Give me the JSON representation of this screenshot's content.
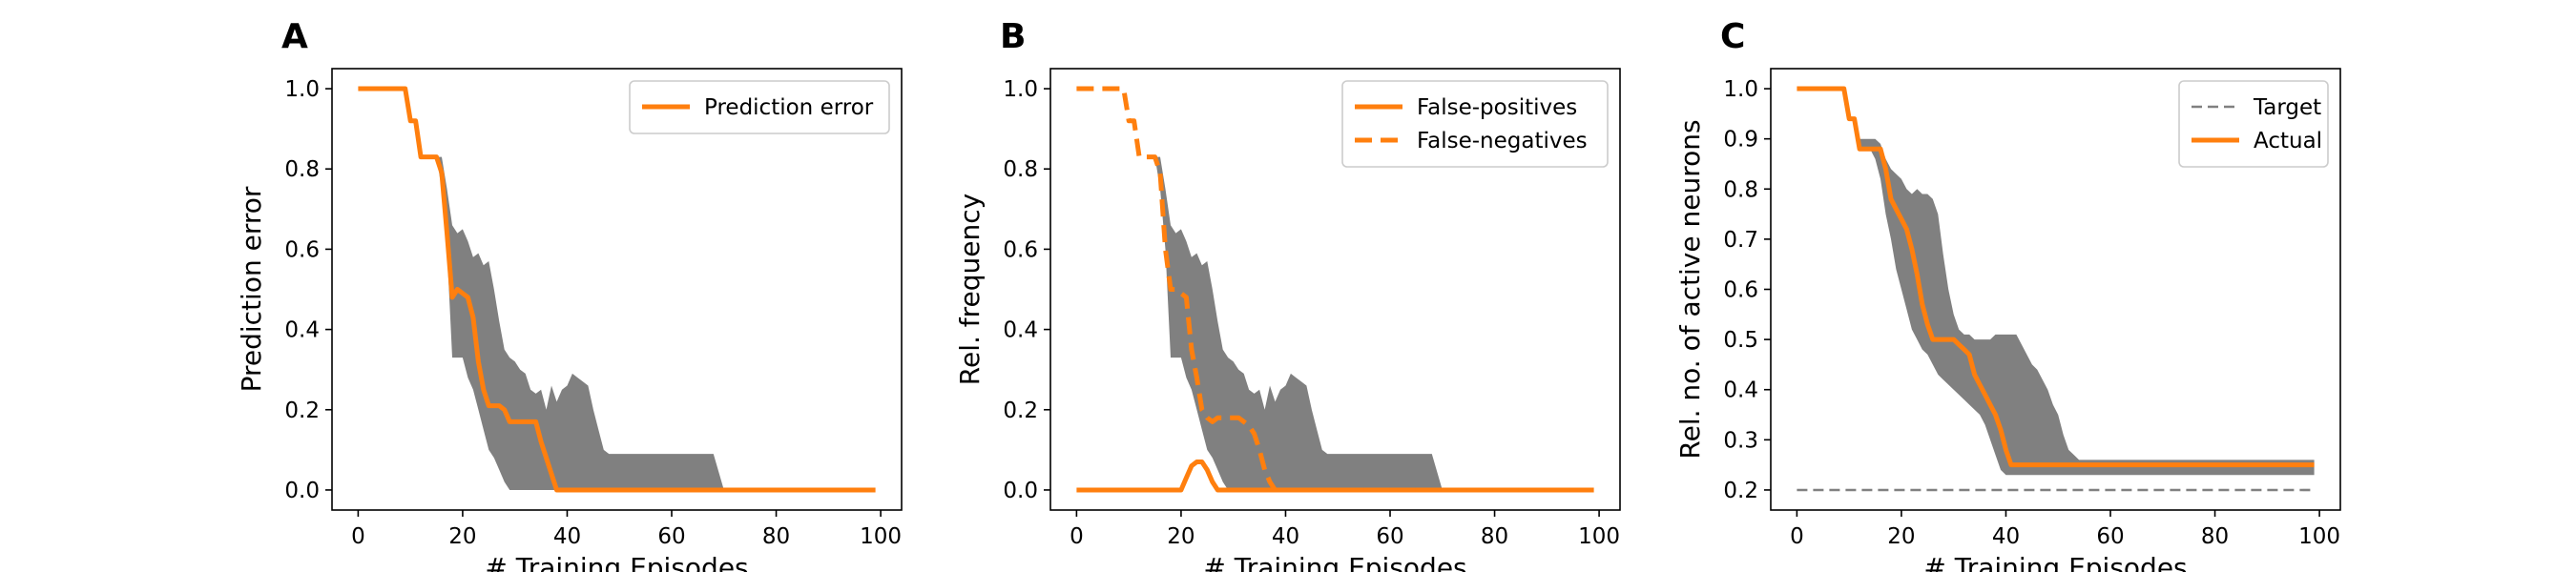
{
  "colors": {
    "line": "#ff7f0e",
    "band": "#808080",
    "target": "#808080",
    "axes": "#000000",
    "legend_border": "#cccccc"
  },
  "chart_data": [
    {
      "panel": "A",
      "type": "line",
      "xlabel": "# Training Episodes",
      "ylabel": "Prediction error",
      "xlim": [
        -5,
        104
      ],
      "ylim": [
        -0.05,
        1.05
      ],
      "xticks": [
        0,
        20,
        40,
        60,
        80,
        100
      ],
      "yticks": [
        0.0,
        0.2,
        0.4,
        0.6,
        0.8,
        1.0
      ],
      "xtick_labels": [
        "0",
        "20",
        "40",
        "60",
        "80",
        "100"
      ],
      "ytick_labels": [
        "0.0",
        "0.2",
        "0.4",
        "0.6",
        "0.8",
        "1.0"
      ],
      "legend_position": "top-right",
      "band": {
        "x": [
          0,
          9,
          10,
          11,
          12,
          13,
          14,
          15,
          16,
          17,
          18,
          19,
          20,
          21,
          22,
          23,
          24,
          25,
          26,
          27,
          28,
          29,
          30,
          31,
          32,
          33,
          34,
          35,
          36,
          37,
          38,
          39,
          40,
          41,
          42,
          43,
          44,
          45,
          46,
          47,
          48,
          49,
          50,
          55,
          60,
          65,
          67,
          68,
          70,
          75,
          80,
          90,
          99
        ],
        "lower": [
          1.0,
          1.0,
          0.92,
          0.92,
          0.83,
          0.83,
          0.83,
          0.83,
          0.75,
          0.6,
          0.33,
          0.33,
          0.33,
          0.28,
          0.25,
          0.2,
          0.15,
          0.1,
          0.08,
          0.05,
          0.02,
          0.0,
          0.0,
          0.0,
          0.0,
          0.0,
          0.0,
          0.0,
          0.0,
          0.0,
          0.0,
          0.0,
          0.0,
          0.0,
          0.0,
          0.0,
          0.0,
          0.0,
          0.0,
          0.0,
          0.0,
          0.0,
          0.0,
          0.0,
          0.0,
          0.0,
          0.0,
          0.0,
          0.0,
          0.0,
          0.0,
          0.0,
          0.0
        ],
        "upper": [
          1.0,
          1.0,
          0.92,
          0.92,
          0.83,
          0.83,
          0.83,
          0.83,
          0.83,
          0.75,
          0.66,
          0.64,
          0.65,
          0.62,
          0.58,
          0.59,
          0.56,
          0.57,
          0.5,
          0.42,
          0.35,
          0.33,
          0.32,
          0.3,
          0.29,
          0.25,
          0.24,
          0.25,
          0.2,
          0.26,
          0.22,
          0.25,
          0.26,
          0.29,
          0.28,
          0.27,
          0.26,
          0.2,
          0.15,
          0.1,
          0.09,
          0.09,
          0.09,
          0.09,
          0.09,
          0.09,
          0.09,
          0.09,
          0.0,
          0.0,
          0.0,
          0.0,
          0.0
        ]
      },
      "series": [
        {
          "name": "Prediction error",
          "style": "solid",
          "x": [
            0,
            9,
            10,
            11,
            12,
            13,
            14,
            15,
            16,
            17,
            18,
            19,
            20,
            21,
            22,
            23,
            24,
            25,
            26,
            27,
            28,
            29,
            30,
            31,
            32,
            33,
            34,
            35,
            36,
            37,
            38,
            39,
            40,
            50,
            60,
            70,
            80,
            90,
            99
          ],
          "y": [
            1.0,
            1.0,
            0.92,
            0.92,
            0.83,
            0.83,
            0.83,
            0.83,
            0.79,
            0.64,
            0.48,
            0.5,
            0.49,
            0.48,
            0.43,
            0.32,
            0.25,
            0.21,
            0.21,
            0.21,
            0.2,
            0.17,
            0.17,
            0.17,
            0.17,
            0.17,
            0.17,
            0.12,
            0.08,
            0.04,
            0.0,
            0.0,
            0.0,
            0.0,
            0.0,
            0.0,
            0.0,
            0.0,
            0.0
          ]
        }
      ]
    },
    {
      "panel": "B",
      "type": "line",
      "xlabel": "# Training Episodes",
      "ylabel": "Rel. frequency",
      "xlim": [
        -5,
        104
      ],
      "ylim": [
        -0.05,
        1.05
      ],
      "xticks": [
        0,
        20,
        40,
        60,
        80,
        100
      ],
      "yticks": [
        0.0,
        0.2,
        0.4,
        0.6,
        0.8,
        1.0
      ],
      "xtick_labels": [
        "0",
        "20",
        "40",
        "60",
        "80",
        "100"
      ],
      "ytick_labels": [
        "0.0",
        "0.2",
        "0.4",
        "0.6",
        "0.8",
        "1.0"
      ],
      "legend_position": "top-right",
      "band": {
        "x": [
          0,
          9,
          10,
          11,
          12,
          13,
          14,
          15,
          16,
          17,
          18,
          19,
          20,
          21,
          22,
          23,
          24,
          25,
          26,
          27,
          28,
          29,
          30,
          31,
          32,
          33,
          34,
          35,
          36,
          37,
          38,
          39,
          40,
          41,
          42,
          43,
          44,
          45,
          46,
          47,
          48,
          49,
          50,
          55,
          60,
          65,
          67,
          68,
          70,
          75,
          80,
          90,
          99
        ],
        "lower": [
          1.0,
          1.0,
          0.92,
          0.92,
          0.83,
          0.83,
          0.83,
          0.83,
          0.75,
          0.6,
          0.33,
          0.33,
          0.33,
          0.28,
          0.25,
          0.2,
          0.15,
          0.1,
          0.08,
          0.05,
          0.02,
          0.0,
          0.0,
          0.0,
          0.0,
          0.0,
          0.0,
          0.0,
          0.0,
          0.0,
          0.0,
          0.0,
          0.0,
          0.0,
          0.0,
          0.0,
          0.0,
          0.0,
          0.0,
          0.0,
          0.0,
          0.0,
          0.0,
          0.0,
          0.0,
          0.0,
          0.0,
          0.0,
          0.0,
          0.0,
          0.0,
          0.0,
          0.0
        ],
        "upper": [
          1.0,
          1.0,
          0.92,
          0.92,
          0.83,
          0.83,
          0.83,
          0.83,
          0.83,
          0.75,
          0.66,
          0.64,
          0.65,
          0.62,
          0.58,
          0.59,
          0.56,
          0.57,
          0.5,
          0.42,
          0.35,
          0.33,
          0.32,
          0.3,
          0.29,
          0.25,
          0.24,
          0.25,
          0.2,
          0.26,
          0.22,
          0.25,
          0.26,
          0.29,
          0.28,
          0.27,
          0.26,
          0.2,
          0.15,
          0.1,
          0.09,
          0.09,
          0.09,
          0.09,
          0.09,
          0.09,
          0.09,
          0.09,
          0.0,
          0.0,
          0.0,
          0.0,
          0.0
        ]
      },
      "series": [
        {
          "name": "False-positives",
          "style": "solid",
          "x": [
            0,
            20,
            21,
            22,
            23,
            24,
            25,
            26,
            27,
            28,
            30,
            40,
            60,
            80,
            99
          ],
          "y": [
            0.0,
            0.0,
            0.03,
            0.06,
            0.07,
            0.07,
            0.05,
            0.02,
            0.0,
            0.0,
            0.0,
            0.0,
            0.0,
            0.0,
            0.0
          ]
        },
        {
          "name": "False-negatives",
          "style": "dashed",
          "x": [
            0,
            9,
            10,
            11,
            12,
            13,
            14,
            15,
            16,
            17,
            18,
            19,
            20,
            21,
            22,
            23,
            24,
            25,
            26,
            27,
            28,
            29,
            30,
            31,
            32,
            33,
            34,
            35,
            36,
            37,
            38,
            39,
            40,
            60,
            80,
            99
          ],
          "y": [
            1.0,
            1.0,
            0.92,
            0.92,
            0.83,
            0.83,
            0.83,
            0.83,
            0.79,
            0.6,
            0.5,
            0.5,
            0.49,
            0.48,
            0.35,
            0.28,
            0.2,
            0.18,
            0.17,
            0.18,
            0.18,
            0.18,
            0.18,
            0.18,
            0.17,
            0.16,
            0.14,
            0.1,
            0.05,
            0.02,
            0.0,
            0.0,
            0.0,
            0.0,
            0.0,
            0.0
          ]
        }
      ]
    },
    {
      "panel": "C",
      "type": "line",
      "xlabel": "# Training Episodes",
      "ylabel": "Rel. no. of active neurons",
      "xlim": [
        -5,
        104
      ],
      "ylim": [
        0.16,
        1.04
      ],
      "xticks": [
        0,
        20,
        40,
        60,
        80,
        100
      ],
      "yticks": [
        0.2,
        0.3,
        0.4,
        0.5,
        0.6,
        0.7,
        0.8,
        0.9,
        1.0
      ],
      "xtick_labels": [
        "0",
        "20",
        "40",
        "60",
        "80",
        "100"
      ],
      "ytick_labels": [
        "0.2",
        "0.3",
        "0.4",
        "0.5",
        "0.6",
        "0.7",
        "0.8",
        "0.9",
        "1.0"
      ],
      "legend_position": "top-right",
      "band": {
        "x": [
          0,
          9,
          10,
          11,
          12,
          13,
          14,
          15,
          16,
          17,
          18,
          19,
          20,
          21,
          22,
          23,
          24,
          25,
          26,
          27,
          28,
          29,
          30,
          31,
          32,
          33,
          34,
          35,
          36,
          37,
          38,
          39,
          40,
          41,
          42,
          43,
          44,
          45,
          46,
          47,
          48,
          49,
          50,
          51,
          52,
          53,
          54,
          55,
          60,
          70,
          80,
          90,
          99
        ],
        "lower": [
          1.0,
          1.0,
          0.94,
          0.94,
          0.88,
          0.88,
          0.88,
          0.86,
          0.82,
          0.75,
          0.7,
          0.64,
          0.6,
          0.56,
          0.52,
          0.5,
          0.48,
          0.47,
          0.45,
          0.43,
          0.42,
          0.41,
          0.4,
          0.39,
          0.38,
          0.37,
          0.36,
          0.35,
          0.33,
          0.3,
          0.27,
          0.24,
          0.23,
          0.23,
          0.23,
          0.23,
          0.23,
          0.23,
          0.23,
          0.23,
          0.23,
          0.23,
          0.23,
          0.23,
          0.23,
          0.23,
          0.23,
          0.23,
          0.23,
          0.23,
          0.23,
          0.23,
          0.23
        ],
        "upper": [
          1.0,
          1.0,
          0.94,
          0.94,
          0.9,
          0.9,
          0.9,
          0.9,
          0.89,
          0.86,
          0.84,
          0.83,
          0.82,
          0.8,
          0.79,
          0.8,
          0.79,
          0.79,
          0.78,
          0.75,
          0.67,
          0.6,
          0.55,
          0.52,
          0.51,
          0.51,
          0.5,
          0.5,
          0.5,
          0.5,
          0.51,
          0.51,
          0.51,
          0.51,
          0.51,
          0.49,
          0.47,
          0.45,
          0.44,
          0.42,
          0.4,
          0.37,
          0.35,
          0.31,
          0.28,
          0.27,
          0.26,
          0.26,
          0.26,
          0.26,
          0.26,
          0.26,
          0.26
        ]
      },
      "series": [
        {
          "name": "Target",
          "style": "dashed-thin",
          "x": [
            0,
            99
          ],
          "y": [
            0.2,
            0.2
          ]
        },
        {
          "name": "Actual",
          "style": "solid",
          "x": [
            0,
            9,
            10,
            11,
            12,
            13,
            14,
            15,
            16,
            17,
            18,
            19,
            20,
            21,
            22,
            23,
            24,
            25,
            26,
            27,
            28,
            29,
            30,
            31,
            32,
            33,
            34,
            35,
            36,
            37,
            38,
            39,
            40,
            41,
            42,
            43,
            44,
            45,
            50,
            60,
            70,
            80,
            90,
            99
          ],
          "y": [
            1.0,
            1.0,
            0.94,
            0.94,
            0.88,
            0.88,
            0.88,
            0.88,
            0.88,
            0.84,
            0.78,
            0.76,
            0.74,
            0.72,
            0.68,
            0.63,
            0.57,
            0.53,
            0.5,
            0.5,
            0.5,
            0.5,
            0.5,
            0.49,
            0.48,
            0.47,
            0.43,
            0.41,
            0.39,
            0.37,
            0.35,
            0.32,
            0.28,
            0.25,
            0.25,
            0.25,
            0.25,
            0.25,
            0.25,
            0.25,
            0.25,
            0.25,
            0.25,
            0.25
          ]
        }
      ]
    }
  ]
}
